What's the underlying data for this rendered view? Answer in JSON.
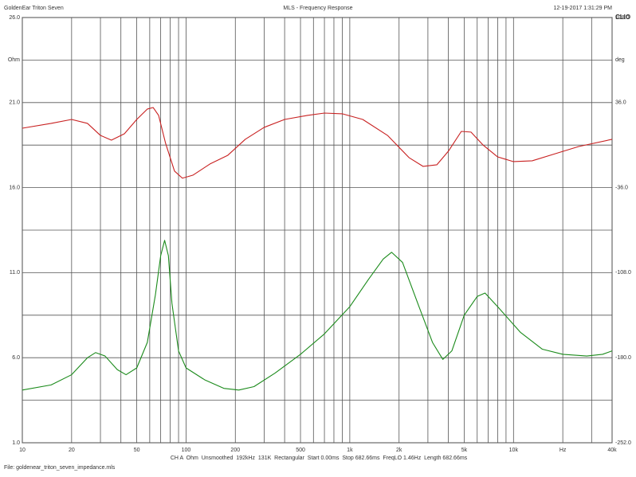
{
  "chart_data": {
    "type": "line",
    "title": "MLS - Frequency Response",
    "header_left": "GoldenEar Triton Seven",
    "header_right": "12-19-2017 1:31:29 PM",
    "brand": "CLIO",
    "info": "CH A  Ohm  Unsmoothed  192kHz  131K  Rectangular  Start 0.00ms  Stop 682.66ms  FreqLO 1.46Hz  Length 682.66ms",
    "file": "File: goldenear_triton_seven_impedance.mls",
    "x_unit": "Hz",
    "y_unit": "Ohm",
    "y2_unit": "deg",
    "xscale": "log",
    "xlim": [
      10,
      40000
    ],
    "xticks": [
      10,
      20,
      50,
      100,
      200,
      500,
      {
        "value": 1000,
        "label": "1k"
      },
      {
        "value": 2000,
        "label": "2k"
      },
      {
        "value": 5000,
        "label": "5k"
      },
      {
        "value": 10000,
        "label": "10k"
      },
      {
        "value": 40000,
        "label": "40k"
      }
    ],
    "xgrid": [
      10,
      20,
      30,
      40,
      50,
      60,
      70,
      80,
      90,
      100,
      200,
      300,
      400,
      500,
      600,
      700,
      800,
      900,
      1000,
      2000,
      3000,
      4000,
      5000,
      6000,
      7000,
      8000,
      9000,
      10000,
      20000,
      30000,
      40000
    ],
    "ylim": [
      1,
      26
    ],
    "yticks": [
      {
        "value": 1,
        "label": "1.0"
      },
      {
        "value": 6,
        "label": "6.0"
      },
      {
        "value": 11,
        "label": "11.0"
      },
      {
        "value": 16,
        "label": "16.0"
      },
      {
        "value": 21,
        "label": "21.0"
      },
      {
        "value": 26,
        "label": "26.0"
      }
    ],
    "ygrid": [
      1,
      3.5,
      6,
      8.5,
      11,
      13.5,
      16,
      18.5,
      21,
      23.5,
      26
    ],
    "y2lim": [
      -252,
      108
    ],
    "y2ticks": [
      {
        "value": -252,
        "label": "-252.0"
      },
      {
        "value": -180,
        "label": "-180.0"
      },
      {
        "value": -108,
        "label": "-108.0"
      },
      {
        "value": -36,
        "label": "-36.0"
      },
      {
        "value": 36,
        "label": "36.0"
      },
      {
        "value": 108,
        "label": "108.0"
      }
    ],
    "grid": true,
    "series": [
      {
        "name": "Impedance",
        "color": "#1a8a1a",
        "x": [
          10,
          15,
          20,
          25,
          28,
          32,
          38,
          43,
          50,
          58,
          65,
          70,
          74,
          78,
          82,
          90,
          100,
          130,
          170,
          210,
          260,
          350,
          500,
          700,
          1000,
          1300,
          1600,
          1800,
          2100,
          2600,
          3200,
          3700,
          4200,
          5000,
          6000,
          6700,
          8000,
          11000,
          15000,
          20000,
          28000,
          35000,
          40000
        ],
        "values": [
          4.1,
          4.4,
          5.0,
          6.0,
          6.3,
          6.1,
          5.3,
          5.0,
          5.4,
          6.9,
          9.7,
          12.0,
          12.9,
          12.0,
          9.2,
          6.4,
          5.4,
          4.7,
          4.2,
          4.1,
          4.3,
          5.1,
          6.2,
          7.4,
          9.0,
          10.6,
          11.8,
          12.2,
          11.6,
          9.2,
          6.9,
          5.9,
          6.4,
          8.5,
          9.6,
          9.8,
          9.0,
          7.5,
          6.5,
          6.2,
          6.1,
          6.2,
          6.4
        ]
      },
      {
        "name": "Phase",
        "color": "#c82020",
        "axis": "y2",
        "x": [
          10,
          15,
          20,
          25,
          30,
          35,
          42,
          50,
          58,
          63,
          68,
          75,
          85,
          95,
          110,
          140,
          180,
          230,
          300,
          400,
          550,
          700,
          900,
          1200,
          1700,
          2300,
          2800,
          3400,
          4000,
          4800,
          5500,
          6500,
          8000,
          10000,
          13000,
          18000,
          25000,
          40000
        ],
        "values": [
          14.3,
          18.4,
          21.7,
          18.4,
          8.2,
          4.2,
          9.6,
          21.7,
          30.5,
          31.8,
          25.1,
          1.5,
          -22.0,
          -28.0,
          -25.5,
          -16.0,
          -8.6,
          4.9,
          15.0,
          21.7,
          25.1,
          27.1,
          26.5,
          21.7,
          8.2,
          -10.6,
          -18.0,
          -16.7,
          -5.2,
          11.6,
          11.0,
          0.2,
          -10.0,
          -14.0,
          -13.3,
          -7.3,
          -1.2,
          4.9
        ]
      }
    ]
  }
}
